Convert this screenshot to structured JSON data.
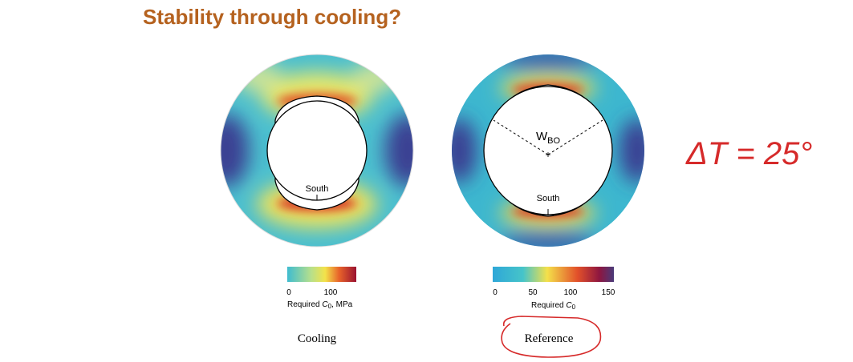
{
  "header": {
    "title": "Stability through cooling?"
  },
  "panels": [
    {
      "south_label": "South",
      "colorbar": {
        "ticks": [
          "0",
          "100"
        ],
        "label": {
          "prefix": "Required",
          "symbol": "C",
          "subscript": "0",
          "suffix": ", MPa"
        }
      },
      "caption": "Cooling"
    },
    {
      "south_label": "South",
      "breakout_label": {
        "symbol": "W",
        "subscript": "BO"
      },
      "colorbar": {
        "ticks": [
          "0",
          "50",
          "100",
          "150"
        ],
        "label": {
          "prefix": "Required",
          "symbol": "C",
          "subscript": "0"
        }
      },
      "caption": "Reference"
    }
  ],
  "annotation": "ΔT = 25°"
}
